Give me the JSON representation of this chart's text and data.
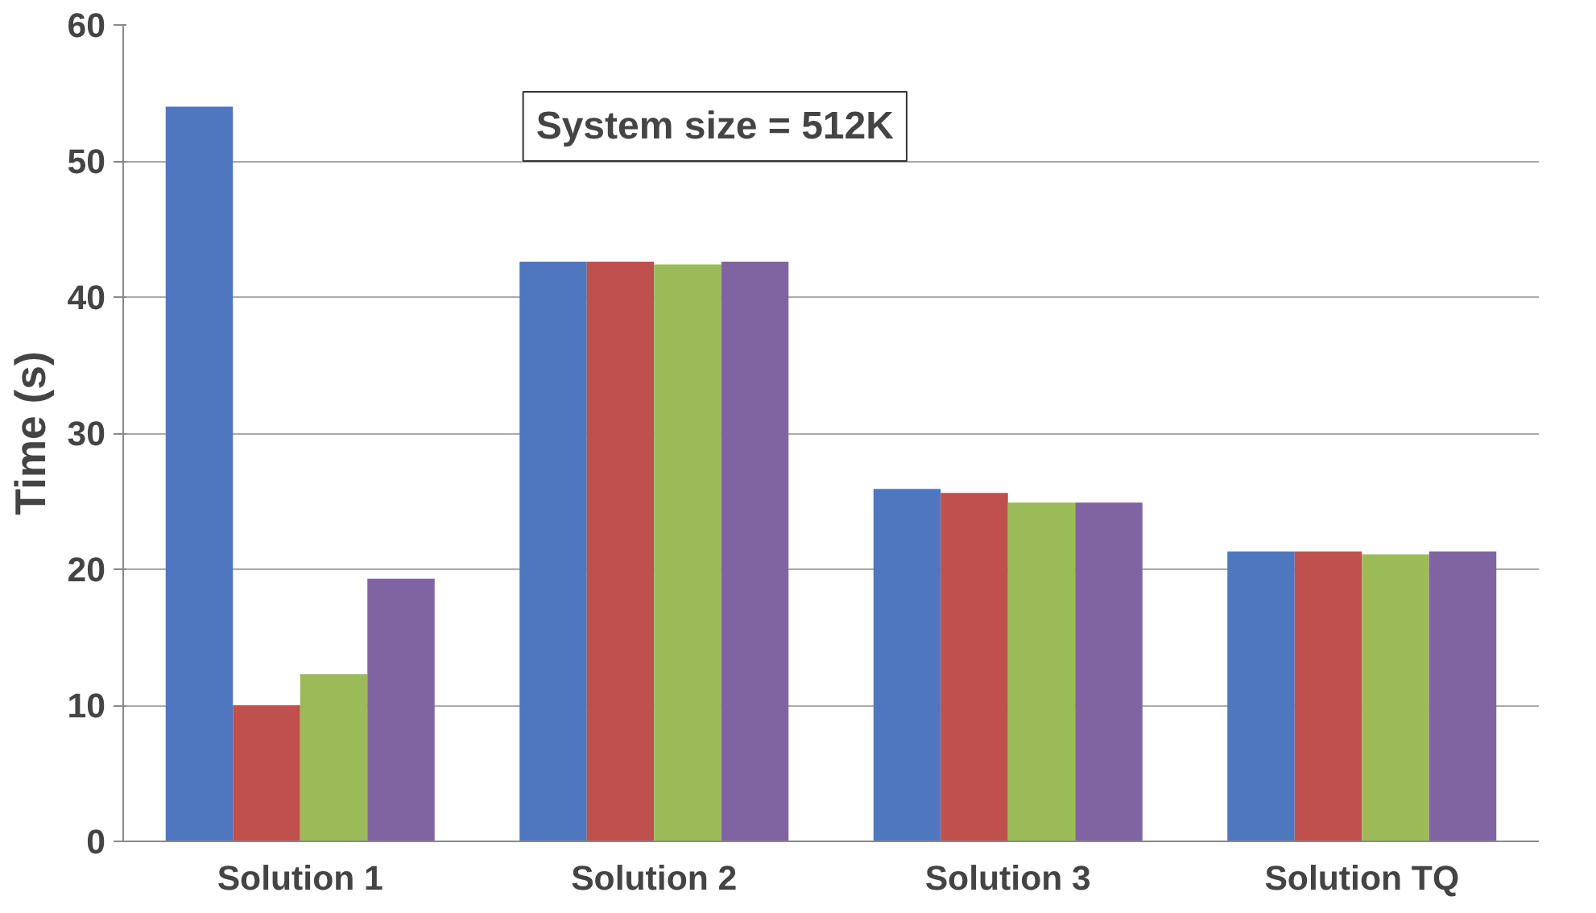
{
  "chart_data": {
    "type": "bar",
    "ylabel": "Time (s)",
    "categories": [
      "Solution 1",
      "Solution 2",
      "Solution 3",
      "Solution TQ"
    ],
    "series": [
      {
        "color": "#4f77c0",
        "values": [
          54,
          42.6,
          25.9,
          21.3
        ]
      },
      {
        "color": "#c0504d",
        "values": [
          10,
          42.6,
          25.6,
          21.3
        ]
      },
      {
        "color": "#9bbb59",
        "values": [
          12.3,
          42.4,
          24.9,
          21.1
        ]
      },
      {
        "color": "#8064a2",
        "values": [
          19.3,
          42.6,
          24.9,
          21.3
        ]
      }
    ],
    "ylim": [
      0,
      60
    ],
    "yticks": [
      0,
      10,
      20,
      30,
      40,
      50,
      60
    ],
    "grid": "y",
    "annotations": [
      "System size = 512K"
    ]
  }
}
